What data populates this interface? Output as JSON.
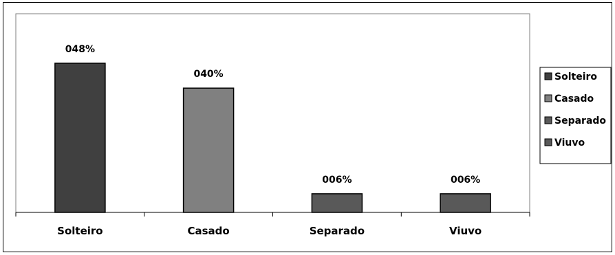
{
  "chart_data": {
    "type": "bar",
    "categories": [
      "Solteiro",
      "Casado",
      "Separado",
      "Viuvo"
    ],
    "values": [
      48,
      40,
      6,
      6
    ],
    "data_labels": [
      "048%",
      "040%",
      "006%",
      "006%"
    ],
    "colors": [
      "#404040",
      "#808080",
      "#595959",
      "#595959"
    ],
    "title": "",
    "xlabel": "",
    "ylabel": "",
    "ylim": [
      0,
      50
    ],
    "grid": false,
    "legend": {
      "placement": "right",
      "entries": [
        "Solteiro",
        "Casado",
        "Separado",
        "Viuvo"
      ]
    }
  }
}
